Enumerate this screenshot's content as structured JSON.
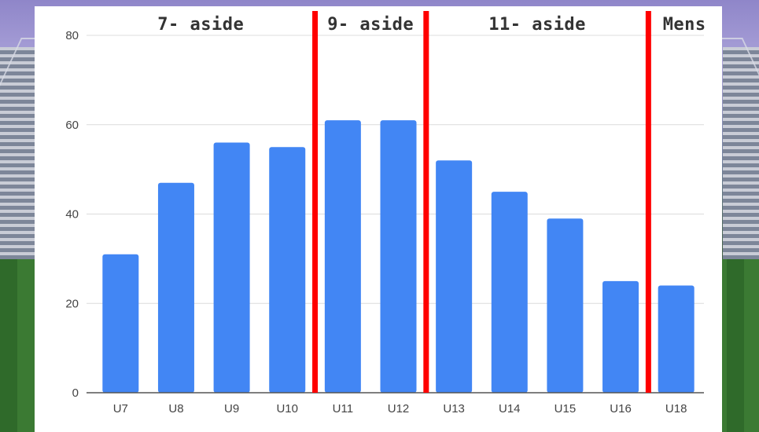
{
  "chart_data": {
    "type": "bar",
    "categories": [
      "U7",
      "U8",
      "U9",
      "U10",
      "U11",
      "U12",
      "U13",
      "U14",
      "U15",
      "U16",
      "U18"
    ],
    "values": [
      31,
      47,
      56,
      55,
      61,
      61,
      52,
      45,
      39,
      25,
      24
    ],
    "ylim": [
      0,
      80
    ],
    "yticks": [
      0,
      20,
      40,
      60,
      80
    ],
    "grid": true,
    "bar_color": "#4286f4",
    "divider_color": "#ff0000",
    "sections": [
      {
        "label": "7- aside",
        "categories": [
          "U7",
          "U8",
          "U9",
          "U10"
        ]
      },
      {
        "label": "9- aside",
        "categories": [
          "U11",
          "U12"
        ]
      },
      {
        "label": "11- aside",
        "categories": [
          "U13",
          "U14",
          "U15",
          "U16"
        ]
      },
      {
        "label": "Mens",
        "categories": [
          "U18"
        ]
      }
    ]
  }
}
